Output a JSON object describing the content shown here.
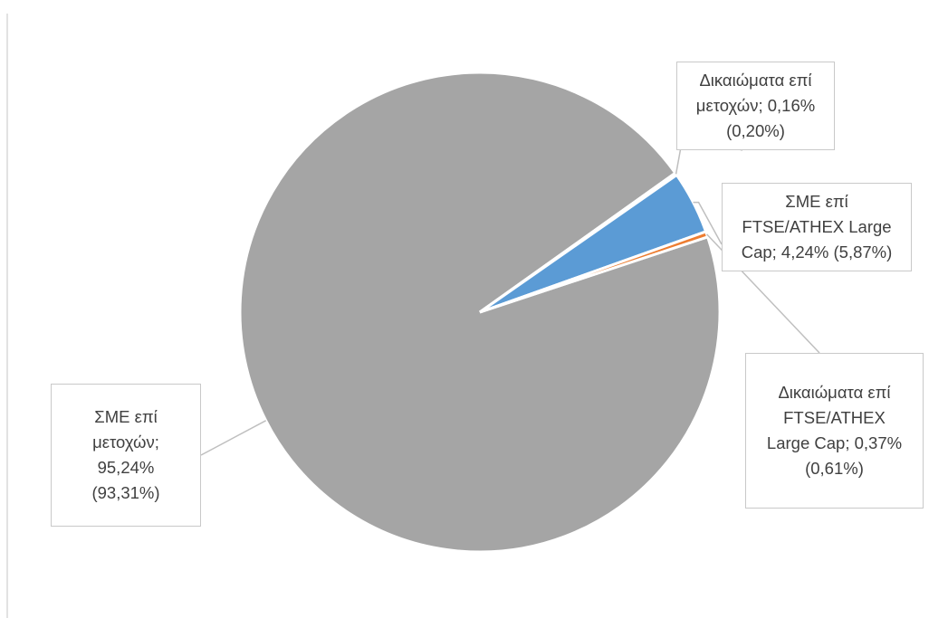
{
  "chart_data": {
    "type": "pie",
    "title": "",
    "slices": [
      {
        "name": "ΣΜΕ επί μετοχών",
        "value": 95.24,
        "previous": 93.31,
        "color": "#a5a5a5",
        "label": "ΣΜΕ επί\nμετοχών;\n95,24%\n(93,31%)"
      },
      {
        "name": "Δικαιώματα επί μετοχών",
        "value": 0.16,
        "previous": 0.2,
        "color": "#ffc000",
        "label": "Δικαιώματα επί\nμετοχών; 0,16%\n(0,20%)"
      },
      {
        "name": "ΣΜΕ επί FTSE/ATHEX Large Cap",
        "value": 4.24,
        "previous": 5.87,
        "color": "#5b9bd5",
        "label": "ΣΜΕ επί\nFTSE/ATHEX Large\nCap; 4,24% (5,87%)"
      },
      {
        "name": "Δικαιώματα επί FTSE/ATHEX Large Cap",
        "value": 0.37,
        "previous": 0.61,
        "color": "#ed7d31",
        "label": "Δικαιώματα επί\nFTSE/ATHEX\nLarge Cap; 0,37%\n(0,61%)"
      }
    ],
    "legend": "none"
  }
}
